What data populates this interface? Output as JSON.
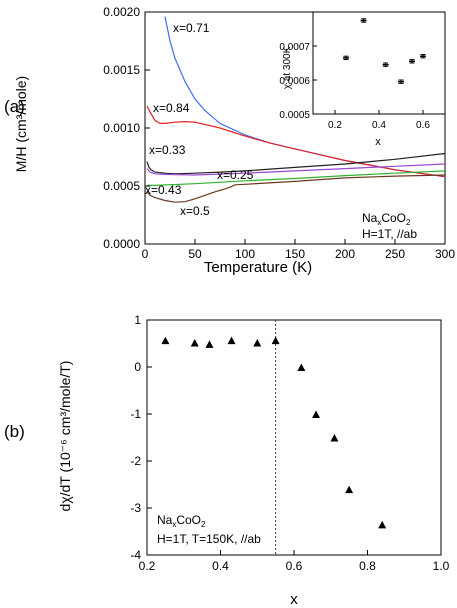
{
  "panels": {
    "a": "(a)",
    "b": "(b)"
  },
  "chart_data": [
    {
      "type": "line",
      "panel": "(a)",
      "xlabel": "Temperature (K)",
      "ylabel": "M/H (cm³/mole)",
      "xlim": [
        0,
        300
      ],
      "ylim": [
        0,
        0.002
      ],
      "xticks": [
        "0",
        "50",
        "100",
        "150",
        "200",
        "250",
        "300"
      ],
      "yticks": [
        "0.0000",
        "0.0005",
        "0.0010",
        "0.0015",
        "0.0020"
      ],
      "grid": false,
      "annotation": [
        "NaxCoO2",
        "H=1T, //ab"
      ],
      "series": [
        {
          "name": "x=0.71",
          "color": "#3b6ef5",
          "x": [
            20,
            25,
            30,
            40,
            50,
            60,
            75,
            100,
            125,
            150,
            175,
            200,
            225,
            250,
            275,
            300
          ],
          "y": [
            0.00196,
            0.00175,
            0.0016,
            0.0014,
            0.00125,
            0.00115,
            0.00104,
            0.00094,
            0.00087,
            0.00082,
            0.00077,
            0.00072,
            0.00068,
            0.00064,
            0.00061,
            0.00058
          ]
        },
        {
          "name": "x=0.84",
          "color": "#e32222",
          "x": [
            2,
            5,
            10,
            15,
            20,
            30,
            40,
            50,
            60,
            75,
            100,
            125,
            150,
            175,
            200,
            225,
            250,
            275,
            300
          ],
          "y": [
            0.00119,
            0.00114,
            0.001065,
            0.00104,
            0.00104,
            0.00105,
            0.001055,
            0.00105,
            0.00103,
            0.001,
            0.00093,
            0.00087,
            0.00082,
            0.00077,
            0.00072,
            0.00068,
            0.00064,
            0.00061,
            0.00058
          ]
        },
        {
          "name": "x=0.33",
          "color": "#222222",
          "x": [
            2,
            4,
            6,
            10,
            20,
            30,
            50,
            75,
            100,
            150,
            200,
            250,
            300
          ],
          "y": [
            0.00071,
            0.00066,
            0.00064,
            0.00062,
            0.00061,
            0.000605,
            0.00061,
            0.00062,
            0.00063,
            0.00066,
            0.00069,
            0.00073,
            0.00078
          ]
        },
        {
          "name": "x=0.25",
          "color": "#9a46d6",
          "x": [
            2,
            5,
            10,
            20,
            50,
            100,
            150,
            200,
            250,
            300
          ],
          "y": [
            0.00065,
            0.00062,
            0.000605,
            0.0006,
            0.000595,
            0.00061,
            0.00063,
            0.00065,
            0.00067,
            0.00069
          ]
        },
        {
          "name": "x=0.43",
          "color": "#2fb32f",
          "x": [
            2,
            10,
            50,
            100,
            150,
            200,
            250,
            300
          ],
          "y": [
            0.000505,
            0.000505,
            0.00052,
            0.000545,
            0.000565,
            0.00059,
            0.00061,
            0.00063
          ]
        },
        {
          "name": "x=0.5",
          "color": "#6b3a1e",
          "x": [
            2,
            5,
            10,
            20,
            30,
            40,
            50,
            60,
            70,
            80,
            85,
            90,
            100,
            150,
            200,
            250,
            300
          ],
          "y": [
            0.00045,
            0.00042,
            0.0004,
            0.000375,
            0.00036,
            0.000365,
            0.00039,
            0.00042,
            0.00045,
            0.000475,
            0.00049,
            0.00051,
            0.000515,
            0.00054,
            0.00057,
            0.000585,
            0.000595
          ]
        }
      ]
    },
    {
      "type": "scatter",
      "panel": "(a) inset",
      "xlabel": "x",
      "ylabel": "χ at 300K",
      "xlim": [
        0.1,
        0.7
      ],
      "ylim": [
        0.0005,
        0.0008
      ],
      "xticks": [
        "0.2",
        "0.4",
        "0.6"
      ],
      "yticks": [
        "0.0005",
        "0.0006",
        "0.0007"
      ],
      "grid": false,
      "series": [
        {
          "x": [
            0.25,
            0.33,
            0.43,
            0.5,
            0.55,
            0.6
          ],
          "y": [
            0.000665,
            0.000775,
            0.000645,
            0.000595,
            0.000655,
            0.00067
          ],
          "err": [
            5e-06,
            5e-06,
            5e-06,
            5e-06,
            5e-06,
            5e-06
          ]
        }
      ]
    },
    {
      "type": "scatter",
      "panel": "(b)",
      "xlabel": "x",
      "ylabel": "dχ/dT (10⁻⁶ cm³/mole/T)",
      "xlim": [
        0.2,
        1.0
      ],
      "ylim": [
        -4,
        1
      ],
      "xticks": [
        "0.2",
        "0.4",
        "0.6",
        "0.8",
        "1.0"
      ],
      "yticks": [
        "-4",
        "-3",
        "-2",
        "-1",
        "0",
        "1"
      ],
      "grid": false,
      "vline": 0.55,
      "annotation": [
        "NaxCoO2",
        "H=1T, T=150K, //ab"
      ],
      "series": [
        {
          "x": [
            0.25,
            0.33,
            0.37,
            0.43,
            0.5,
            0.55,
            0.62,
            0.66,
            0.71,
            0.75,
            0.84
          ],
          "y": [
            0.55,
            0.5,
            0.47,
            0.55,
            0.5,
            0.55,
            -0.02,
            -1.02,
            -1.52,
            -2.62,
            -3.37
          ]
        }
      ]
    }
  ]
}
